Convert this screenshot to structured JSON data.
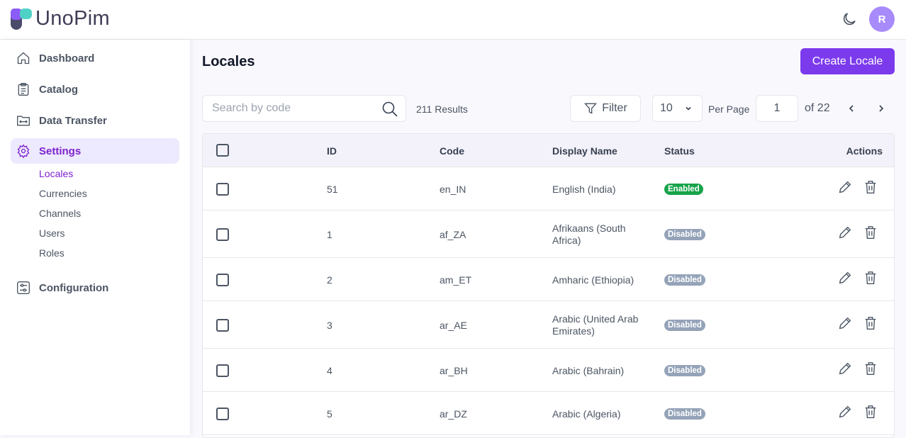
{
  "app": {
    "name": "UnoPim",
    "avatar_initial": "R"
  },
  "sidebar": {
    "items": [
      {
        "label": "Dashboard",
        "icon": "home-icon"
      },
      {
        "label": "Catalog",
        "icon": "clipboard-icon"
      },
      {
        "label": "Data Transfer",
        "icon": "folder-transfer-icon"
      },
      {
        "label": "Settings",
        "icon": "gear-icon",
        "active": true
      },
      {
        "label": "Configuration",
        "icon": "sliders-icon"
      }
    ],
    "settings_sub": [
      {
        "label": "Locales",
        "active": true
      },
      {
        "label": "Currencies"
      },
      {
        "label": "Channels"
      },
      {
        "label": "Users"
      },
      {
        "label": "Roles"
      }
    ]
  },
  "page": {
    "title": "Locales",
    "create_label": "Create Locale"
  },
  "toolbar": {
    "search_placeholder": "Search by code",
    "results": "211 Results",
    "filter_label": "Filter",
    "per_page_value": "10",
    "per_page_label": "Per Page",
    "page_value": "1",
    "of_pages": "of 22"
  },
  "table": {
    "headers": [
      "ID",
      "Code",
      "Display Name",
      "Status",
      "Actions"
    ],
    "rows": [
      {
        "id": "51",
        "code": "en_IN",
        "name": "English (India)",
        "status": "Enabled"
      },
      {
        "id": "1",
        "code": "af_ZA",
        "name": "Afrikaans (South Africa)",
        "status": "Disabled"
      },
      {
        "id": "2",
        "code": "am_ET",
        "name": "Amharic (Ethiopia)",
        "status": "Disabled"
      },
      {
        "id": "3",
        "code": "ar_AE",
        "name": "Arabic (United Arab Emirates)",
        "status": "Disabled"
      },
      {
        "id": "4",
        "code": "ar_BH",
        "name": "Arabic (Bahrain)",
        "status": "Disabled"
      },
      {
        "id": "5",
        "code": "ar_DZ",
        "name": "Arabic (Algeria)",
        "status": "Disabled"
      }
    ]
  },
  "colors": {
    "accent": "#7c3aed",
    "enabled": "#16a34a",
    "disabled": "#94a3b8"
  }
}
